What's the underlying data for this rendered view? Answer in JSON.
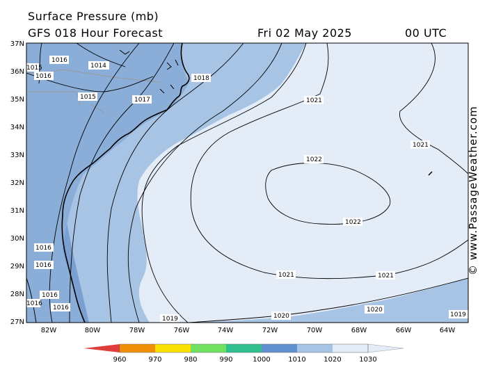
{
  "header": {
    "title": "Surface Pressure (mb)",
    "subtitle": "GFS 018 Hour Forecast",
    "date": "Fri 02 May 2025",
    "time": "00 UTC"
  },
  "credit": "© www.PassageWeather.com",
  "axes": {
    "lat_labels": [
      "37N",
      "36N",
      "35N",
      "34N",
      "33N",
      "32N",
      "31N",
      "30N",
      "29N",
      "28N",
      "27N"
    ],
    "lon_labels": [
      "82W",
      "80W",
      "78W",
      "76W",
      "74W",
      "72W",
      "70W",
      "68W",
      "66W",
      "64W"
    ]
  },
  "contour_labels": [
    "1014",
    "1015",
    "1015",
    "1016",
    "1016",
    "1016",
    "1016",
    "1016",
    "1016",
    "1016",
    "1017",
    "1018",
    "1019",
    "1019",
    "1020",
    "1020",
    "1021",
    "1021",
    "1021",
    "1021",
    "1022",
    "1022"
  ],
  "legend": {
    "ticks": [
      "960",
      "970",
      "980",
      "990",
      "1000",
      "1010",
      "1020",
      "1030"
    ],
    "colors": [
      "#e03c3c",
      "#f0900a",
      "#f8e000",
      "#70e060",
      "#30c090",
      "#6090d0",
      "#a8c4e4",
      "#e4ecf8"
    ]
  },
  "colors": {
    "band_1010_1015": "#7a9fd0",
    "band_1015_1020": "#a8c4e4",
    "band_1020_1025": "#e4ecf8",
    "land": "#8aaed8"
  }
}
